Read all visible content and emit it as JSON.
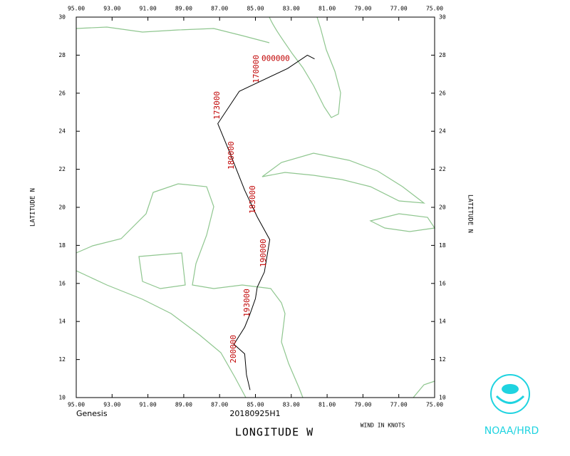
{
  "map": {
    "type": "track",
    "xlim": [
      95,
      75
    ],
    "ylim": [
      10,
      30
    ],
    "xticks": [
      {
        "value": 95,
        "label": "95.00"
      },
      {
        "value": 93,
        "label": "93.00"
      },
      {
        "value": 91,
        "label": "91.00"
      },
      {
        "value": 89,
        "label": "89.00"
      },
      {
        "value": 87,
        "label": "87.00"
      },
      {
        "value": 85,
        "label": "85.00"
      },
      {
        "value": 83,
        "label": "83.00"
      },
      {
        "value": 81,
        "label": "81.00"
      },
      {
        "value": 79,
        "label": "79.00"
      },
      {
        "value": 77,
        "label": "77.00"
      },
      {
        "value": 75,
        "label": "75.00"
      }
    ],
    "yticks": [
      10,
      12,
      14,
      16,
      18,
      20,
      22,
      24,
      26,
      28,
      30
    ],
    "y_label": "LATITUDE  N",
    "x_label": "LONGITUDE  W",
    "left_note": "Genesis",
    "center_note": "20180925H1",
    "wind_note": "WIND IN KNOTS",
    "credit": "NOAA/HRD",
    "track": {
      "lon": [
        81.7,
        82.1,
        83.2,
        85.9,
        87.1,
        86.4,
        85.6,
        84.9,
        84.2,
        84.5,
        84.9,
        85.0,
        85.3,
        85.6,
        86.2,
        85.6,
        85.5,
        85.3
      ],
      "lat": [
        27.8,
        28.0,
        27.3,
        26.1,
        24.4,
        22.8,
        20.9,
        19.5,
        18.3,
        16.6,
        15.8,
        15.2,
        14.4,
        13.7,
        12.8,
        12.3,
        11.2,
        10.4
      ]
    },
    "time_labels": [
      {
        "text": "000000",
        "lon": 83.87,
        "lat": 27.8
      },
      {
        "text": "170000",
        "lon": 84.94,
        "lat": 27.27
      },
      {
        "text": "173000",
        "lon": 87.13,
        "lat": 25.36
      },
      {
        "text": "180000",
        "lon": 86.33,
        "lat": 22.73
      },
      {
        "text": "183000",
        "lon": 85.14,
        "lat": 20.41
      },
      {
        "text": "190000",
        "lon": 84.54,
        "lat": 17.6
      },
      {
        "text": "193000",
        "lon": 85.46,
        "lat": 14.98
      },
      {
        "text": "200000",
        "lon": 86.21,
        "lat": 12.55
      }
    ]
  }
}
